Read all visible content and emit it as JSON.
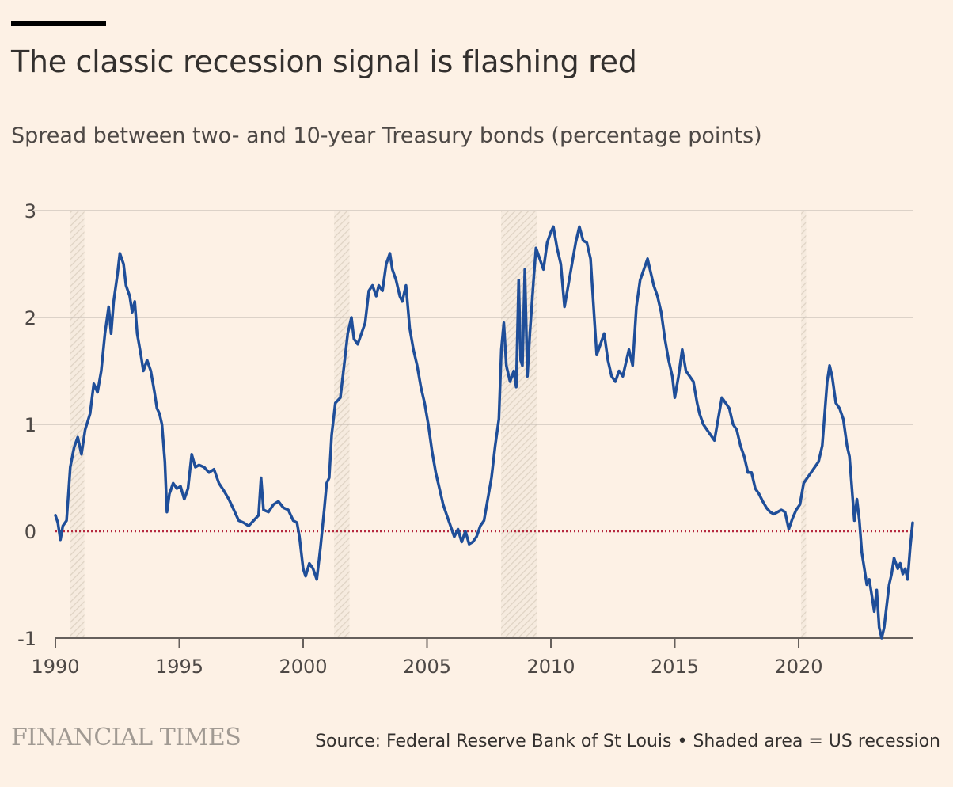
{
  "header": {
    "title": "The classic recession signal is flashing red",
    "subtitle": "Spread between two- and 10-year Treasury bonds (percentage points)"
  },
  "footer": {
    "brand": "FINANCIAL TIMES",
    "source": "Source: Federal Reserve Bank of St Louis • Shaded area = US recession"
  },
  "colors": {
    "background": "#fdf1e5",
    "line": "#1f4e99",
    "zero_line": "#b5293f",
    "grid": "#c9c0b7",
    "recession_hatch": "#e0d4c5"
  },
  "chart_data": {
    "type": "line",
    "x_range": [
      1990,
      2024.6
    ],
    "ylim": [
      -1,
      3
    ],
    "yticks": [
      -1,
      0,
      1,
      2,
      3
    ],
    "ytick_labels": [
      "-1",
      "0",
      "1",
      "2",
      "3"
    ],
    "xticks": [
      1990,
      1995,
      2000,
      2005,
      2010,
      2015,
      2020
    ],
    "xtick_labels": [
      "1990",
      "1995",
      "2000",
      "2005",
      "2010",
      "2015",
      "2020"
    ],
    "grid": true,
    "recessions": [
      {
        "start": 1990.58,
        "end": 1991.17
      },
      {
        "start": 2001.25,
        "end": 2001.87
      },
      {
        "start": 2007.99,
        "end": 2009.45
      },
      {
        "start": 2020.1,
        "end": 2020.3
      }
    ],
    "series": [
      {
        "points": [
          [
            1990.0,
            0.15
          ],
          [
            1990.1,
            0.08
          ],
          [
            1990.2,
            -0.08
          ],
          [
            1990.3,
            0.05
          ],
          [
            1990.45,
            0.1
          ],
          [
            1990.6,
            0.6
          ],
          [
            1990.75,
            0.78
          ],
          [
            1990.9,
            0.88
          ],
          [
            1991.05,
            0.72
          ],
          [
            1991.2,
            0.95
          ],
          [
            1991.4,
            1.1
          ],
          [
            1991.55,
            1.38
          ],
          [
            1991.7,
            1.3
          ],
          [
            1991.85,
            1.5
          ],
          [
            1992.0,
            1.85
          ],
          [
            1992.15,
            2.1
          ],
          [
            1992.25,
            1.85
          ],
          [
            1992.35,
            2.15
          ],
          [
            1992.5,
            2.4
          ],
          [
            1992.6,
            2.6
          ],
          [
            1992.75,
            2.5
          ],
          [
            1992.85,
            2.3
          ],
          [
            1993.0,
            2.2
          ],
          [
            1993.1,
            2.05
          ],
          [
            1993.2,
            2.15
          ],
          [
            1993.3,
            1.85
          ],
          [
            1993.45,
            1.65
          ],
          [
            1993.55,
            1.5
          ],
          [
            1993.7,
            1.6
          ],
          [
            1993.85,
            1.5
          ],
          [
            1994.0,
            1.3
          ],
          [
            1994.1,
            1.15
          ],
          [
            1994.2,
            1.1
          ],
          [
            1994.3,
            1.0
          ],
          [
            1994.42,
            0.65
          ],
          [
            1994.5,
            0.18
          ],
          [
            1994.6,
            0.35
          ],
          [
            1994.75,
            0.45
          ],
          [
            1994.9,
            0.4
          ],
          [
            1995.05,
            0.42
          ],
          [
            1995.2,
            0.3
          ],
          [
            1995.35,
            0.4
          ],
          [
            1995.5,
            0.72
          ],
          [
            1995.65,
            0.6
          ],
          [
            1995.8,
            0.62
          ],
          [
            1996.0,
            0.6
          ],
          [
            1996.2,
            0.55
          ],
          [
            1996.4,
            0.58
          ],
          [
            1996.6,
            0.45
          ],
          [
            1996.8,
            0.38
          ],
          [
            1997.0,
            0.3
          ],
          [
            1997.2,
            0.2
          ],
          [
            1997.4,
            0.1
          ],
          [
            1997.6,
            0.08
          ],
          [
            1997.8,
            0.05
          ],
          [
            1998.0,
            0.1
          ],
          [
            1998.2,
            0.15
          ],
          [
            1998.3,
            0.5
          ],
          [
            1998.4,
            0.2
          ],
          [
            1998.6,
            0.18
          ],
          [
            1998.8,
            0.25
          ],
          [
            1999.0,
            0.28
          ],
          [
            1999.2,
            0.22
          ],
          [
            1999.4,
            0.2
          ],
          [
            1999.6,
            0.1
          ],
          [
            1999.75,
            0.08
          ],
          [
            1999.85,
            -0.05
          ],
          [
            2000.0,
            -0.35
          ],
          [
            2000.1,
            -0.42
          ],
          [
            2000.25,
            -0.3
          ],
          [
            2000.4,
            -0.35
          ],
          [
            2000.55,
            -0.45
          ],
          [
            2000.7,
            -0.15
          ],
          [
            2000.85,
            0.2
          ],
          [
            2000.95,
            0.45
          ],
          [
            2001.05,
            0.5
          ],
          [
            2001.15,
            0.9
          ],
          [
            2001.3,
            1.2
          ],
          [
            2001.5,
            1.25
          ],
          [
            2001.65,
            1.55
          ],
          [
            2001.8,
            1.85
          ],
          [
            2001.95,
            2.0
          ],
          [
            2002.05,
            1.8
          ],
          [
            2002.2,
            1.75
          ],
          [
            2002.35,
            1.85
          ],
          [
            2002.5,
            1.95
          ],
          [
            2002.65,
            2.25
          ],
          [
            2002.8,
            2.3
          ],
          [
            2002.95,
            2.2
          ],
          [
            2003.05,
            2.3
          ],
          [
            2003.2,
            2.25
          ],
          [
            2003.35,
            2.5
          ],
          [
            2003.5,
            2.6
          ],
          [
            2003.6,
            2.45
          ],
          [
            2003.75,
            2.35
          ],
          [
            2003.9,
            2.2
          ],
          [
            2004.0,
            2.15
          ],
          [
            2004.15,
            2.3
          ],
          [
            2004.3,
            1.9
          ],
          [
            2004.45,
            1.7
          ],
          [
            2004.6,
            1.55
          ],
          [
            2004.75,
            1.35
          ],
          [
            2004.9,
            1.2
          ],
          [
            2005.05,
            1.0
          ],
          [
            2005.2,
            0.75
          ],
          [
            2005.35,
            0.55
          ],
          [
            2005.5,
            0.4
          ],
          [
            2005.65,
            0.25
          ],
          [
            2005.8,
            0.15
          ],
          [
            2005.95,
            0.05
          ],
          [
            2006.1,
            -0.05
          ],
          [
            2006.25,
            0.02
          ],
          [
            2006.4,
            -0.1
          ],
          [
            2006.55,
            0.0
          ],
          [
            2006.7,
            -0.12
          ],
          [
            2006.85,
            -0.1
          ],
          [
            2007.0,
            -0.05
          ],
          [
            2007.15,
            0.05
          ],
          [
            2007.3,
            0.1
          ],
          [
            2007.45,
            0.3
          ],
          [
            2007.6,
            0.5
          ],
          [
            2007.75,
            0.8
          ],
          [
            2007.9,
            1.05
          ],
          [
            2008.0,
            1.7
          ],
          [
            2008.1,
            1.95
          ],
          [
            2008.2,
            1.55
          ],
          [
            2008.35,
            1.4
          ],
          [
            2008.5,
            1.5
          ],
          [
            2008.6,
            1.35
          ],
          [
            2008.7,
            2.35
          ],
          [
            2008.78,
            1.6
          ],
          [
            2008.85,
            1.55
          ],
          [
            2008.95,
            2.45
          ],
          [
            2009.05,
            1.45
          ],
          [
            2009.15,
            1.85
          ],
          [
            2009.3,
            2.35
          ],
          [
            2009.4,
            2.65
          ],
          [
            2009.55,
            2.55
          ],
          [
            2009.7,
            2.45
          ],
          [
            2009.85,
            2.7
          ],
          [
            2010.0,
            2.8
          ],
          [
            2010.1,
            2.85
          ],
          [
            2010.25,
            2.65
          ],
          [
            2010.4,
            2.5
          ],
          [
            2010.55,
            2.1
          ],
          [
            2010.7,
            2.3
          ],
          [
            2010.85,
            2.5
          ],
          [
            2011.0,
            2.7
          ],
          [
            2011.15,
            2.85
          ],
          [
            2011.3,
            2.72
          ],
          [
            2011.45,
            2.7
          ],
          [
            2011.6,
            2.55
          ],
          [
            2011.75,
            2.0
          ],
          [
            2011.85,
            1.65
          ],
          [
            2012.0,
            1.75
          ],
          [
            2012.15,
            1.85
          ],
          [
            2012.3,
            1.6
          ],
          [
            2012.45,
            1.45
          ],
          [
            2012.6,
            1.4
          ],
          [
            2012.75,
            1.5
          ],
          [
            2012.9,
            1.45
          ],
          [
            2013.0,
            1.55
          ],
          [
            2013.15,
            1.7
          ],
          [
            2013.3,
            1.55
          ],
          [
            2013.45,
            2.1
          ],
          [
            2013.6,
            2.35
          ],
          [
            2013.75,
            2.45
          ],
          [
            2013.9,
            2.55
          ],
          [
            2014.0,
            2.45
          ],
          [
            2014.15,
            2.3
          ],
          [
            2014.3,
            2.2
          ],
          [
            2014.45,
            2.05
          ],
          [
            2014.6,
            1.8
          ],
          [
            2014.75,
            1.6
          ],
          [
            2014.9,
            1.45
          ],
          [
            2015.0,
            1.25
          ],
          [
            2015.15,
            1.45
          ],
          [
            2015.3,
            1.7
          ],
          [
            2015.45,
            1.5
          ],
          [
            2015.6,
            1.45
          ],
          [
            2015.75,
            1.4
          ],
          [
            2015.9,
            1.2
          ],
          [
            2016.0,
            1.1
          ],
          [
            2016.15,
            1.0
          ],
          [
            2016.3,
            0.95
          ],
          [
            2016.45,
            0.9
          ],
          [
            2016.6,
            0.85
          ],
          [
            2016.75,
            1.05
          ],
          [
            2016.9,
            1.25
          ],
          [
            2017.05,
            1.2
          ],
          [
            2017.2,
            1.15
          ],
          [
            2017.35,
            1.0
          ],
          [
            2017.5,
            0.95
          ],
          [
            2017.65,
            0.8
          ],
          [
            2017.8,
            0.7
          ],
          [
            2017.95,
            0.55
          ],
          [
            2018.1,
            0.55
          ],
          [
            2018.25,
            0.4
          ],
          [
            2018.4,
            0.35
          ],
          [
            2018.55,
            0.28
          ],
          [
            2018.7,
            0.22
          ],
          [
            2018.85,
            0.18
          ],
          [
            2019.0,
            0.16
          ],
          [
            2019.15,
            0.18
          ],
          [
            2019.3,
            0.2
          ],
          [
            2019.45,
            0.18
          ],
          [
            2019.6,
            0.02
          ],
          [
            2019.75,
            0.12
          ],
          [
            2019.9,
            0.2
          ],
          [
            2020.05,
            0.25
          ],
          [
            2020.2,
            0.45
          ],
          [
            2020.35,
            0.5
          ],
          [
            2020.5,
            0.55
          ],
          [
            2020.65,
            0.6
          ],
          [
            2020.8,
            0.65
          ],
          [
            2020.95,
            0.8
          ],
          [
            2021.05,
            1.1
          ],
          [
            2021.15,
            1.4
          ],
          [
            2021.25,
            1.55
          ],
          [
            2021.35,
            1.45
          ],
          [
            2021.5,
            1.2
          ],
          [
            2021.65,
            1.15
          ],
          [
            2021.8,
            1.05
          ],
          [
            2021.95,
            0.8
          ],
          [
            2022.05,
            0.7
          ],
          [
            2022.15,
            0.4
          ],
          [
            2022.25,
            0.1
          ],
          [
            2022.35,
            0.3
          ],
          [
            2022.45,
            0.1
          ],
          [
            2022.55,
            -0.2
          ],
          [
            2022.65,
            -0.35
          ],
          [
            2022.75,
            -0.5
          ],
          [
            2022.85,
            -0.45
          ],
          [
            2022.95,
            -0.6
          ],
          [
            2023.05,
            -0.75
          ],
          [
            2023.15,
            -0.55
          ],
          [
            2023.25,
            -0.9
          ],
          [
            2023.35,
            -1.0
          ],
          [
            2023.45,
            -0.9
          ],
          [
            2023.55,
            -0.7
          ],
          [
            2023.65,
            -0.5
          ],
          [
            2023.75,
            -0.4
          ],
          [
            2023.85,
            -0.25
          ],
          [
            2024.0,
            -0.35
          ],
          [
            2024.1,
            -0.3
          ],
          [
            2024.2,
            -0.4
          ],
          [
            2024.3,
            -0.35
          ],
          [
            2024.4,
            -0.45
          ],
          [
            2024.5,
            -0.15
          ],
          [
            2024.6,
            0.08
          ]
        ]
      }
    ]
  }
}
